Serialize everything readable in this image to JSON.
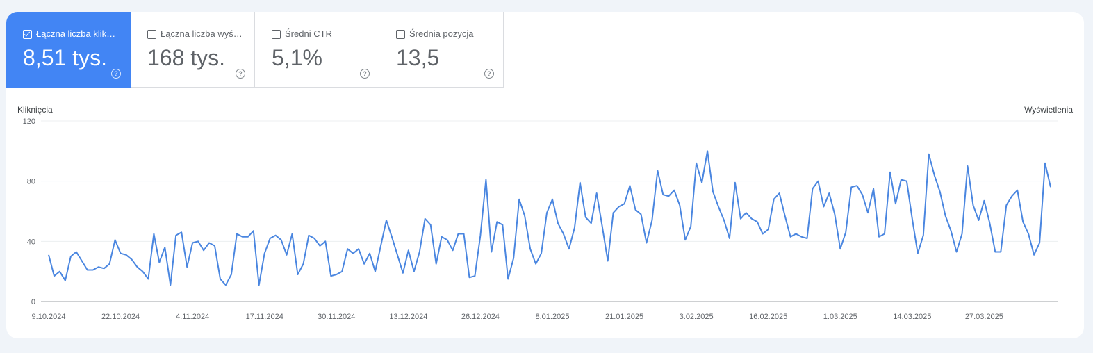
{
  "metrics": [
    {
      "label": "Łączna liczba kliknięć",
      "value": "8,51 tys.",
      "selected": true,
      "help_icon": "help-circle-icon"
    },
    {
      "label": "Łączna liczba wyświetleń",
      "value": "168 tys.",
      "selected": false,
      "help_icon": "help-circle-icon"
    },
    {
      "label": "Średni CTR",
      "value": "5,1%",
      "selected": false,
      "help_icon": "help-circle-icon"
    },
    {
      "label": "Średnia pozycja",
      "value": "13,5",
      "selected": false,
      "help_icon": "help-circle-icon"
    }
  ],
  "colors": {
    "accent": "#4285f4",
    "line": "#4a86e0",
    "grid": "#eceff1"
  },
  "chart_data": {
    "type": "line",
    "ylabel": "Kliknięcia",
    "y2label": "Wyświetlenia",
    "ylim": [
      0,
      120
    ],
    "yticks": [
      0,
      40,
      80,
      120
    ],
    "grid": true,
    "x_start": "9.10.2024",
    "x_tick_labels": [
      "9.10.2024",
      "22.10.2024",
      "4.11.2024",
      "17.11.2024",
      "30.11.2024",
      "13.12.2024",
      "26.12.2024",
      "8.01.2025",
      "21.01.2025",
      "3.02.2025",
      "16.02.2025",
      "1.03.2025",
      "14.03.2025",
      "27.03.2025"
    ],
    "series": [
      {
        "values": [
          31,
          17,
          20,
          14,
          30,
          33,
          27,
          21,
          21,
          23,
          22,
          25,
          41,
          32,
          31,
          28,
          23,
          20,
          15,
          45,
          26,
          36,
          11,
          44,
          46,
          23,
          39,
          40,
          34,
          39,
          37,
          15,
          11,
          18,
          45,
          43,
          43,
          47,
          11,
          32,
          42,
          44,
          41,
          31,
          45,
          18,
          25,
          44,
          42,
          37,
          40,
          17,
          18,
          20,
          35,
          32,
          35,
          25,
          32,
          20,
          37,
          54,
          43,
          31,
          19,
          34,
          20,
          33,
          55,
          51,
          25,
          43,
          41,
          34,
          45,
          45,
          16,
          17,
          44,
          81,
          33,
          53,
          51,
          15,
          29,
          68,
          57,
          35,
          25,
          32,
          59,
          68,
          52,
          45,
          35,
          49,
          79,
          56,
          52,
          72,
          50,
          27,
          59,
          63,
          65,
          77,
          61,
          58,
          39,
          54,
          87,
          71,
          70,
          74,
          64,
          41,
          50,
          92,
          79,
          100,
          73,
          63,
          54,
          42,
          79,
          55,
          59,
          55,
          53,
          45,
          48,
          68,
          72,
          57,
          43,
          45,
          43,
          42,
          75,
          80,
          63,
          72,
          58,
          35,
          46,
          76,
          77,
          71,
          59,
          75,
          43,
          45,
          86,
          65,
          81,
          80,
          55,
          32,
          44,
          98,
          84,
          73,
          57,
          47,
          33,
          45,
          90,
          64,
          54,
          67,
          52,
          33,
          33,
          64,
          70,
          74,
          53,
          45,
          31,
          39,
          92,
          76
        ]
      }
    ]
  }
}
